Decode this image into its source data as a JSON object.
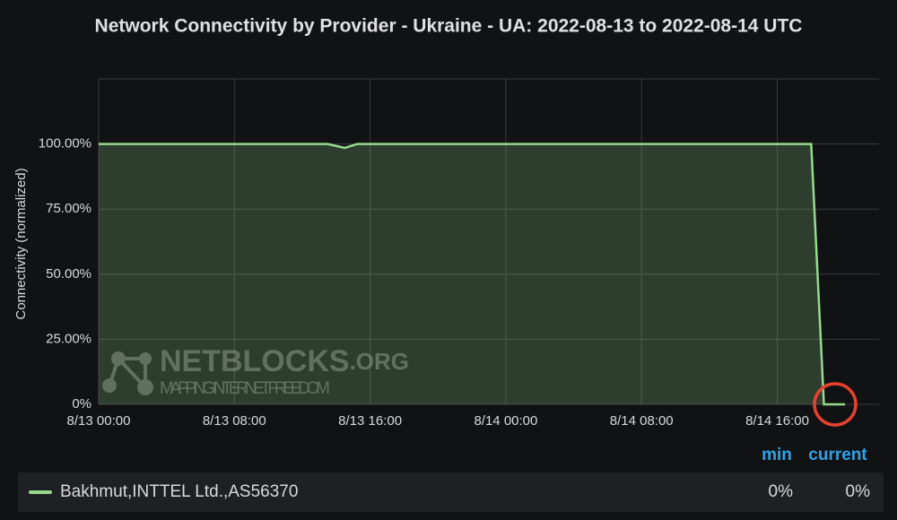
{
  "chart_data": {
    "type": "area",
    "title": "Network Connectivity by Provider - Ukraine - UA: 2022-08-13 to 2022-08-14 UTC",
    "y_label": "Connectivity (normalized)",
    "x": [
      "8/13 00:00",
      "8/13 13:30",
      "8/13 14:30",
      "8/13 15:15",
      "8/14 18:00",
      "8/14 18:45",
      "8/14 20:00"
    ],
    "series": [
      {
        "name": "Bakhmut,INTTEL Ltd.,AS56370",
        "color": "#96d98d",
        "values": [
          100,
          100,
          98.5,
          100,
          100,
          0,
          0
        ],
        "legend_values": [
          0,
          0
        ],
        "legend_value_labels": [
          "0%",
          "0%"
        ]
      }
    ],
    "legend_columns": [
      "min",
      "current"
    ],
    "xlim": [
      "8/13 00:00",
      "8/14 22:00"
    ],
    "xticks": [
      "8/13 00:00",
      "8/13 08:00",
      "8/13 16:00",
      "8/14 00:00",
      "8/14 08:00",
      "8/14 16:00"
    ],
    "ylim": [
      0,
      125
    ],
    "yticks": [
      {
        "value": 0,
        "label": "0%"
      },
      {
        "value": 25,
        "label": "25.00%"
      },
      {
        "value": 50,
        "label": "50.00%"
      },
      {
        "value": 75,
        "label": "75.00%"
      },
      {
        "value": 100,
        "label": "100.00%"
      }
    ],
    "grid": true,
    "watermark": {
      "brand": "NETBLOCKS",
      "domain": ".ORG",
      "tagline": "MAPPING INTERNET FREEDOM"
    }
  }
}
